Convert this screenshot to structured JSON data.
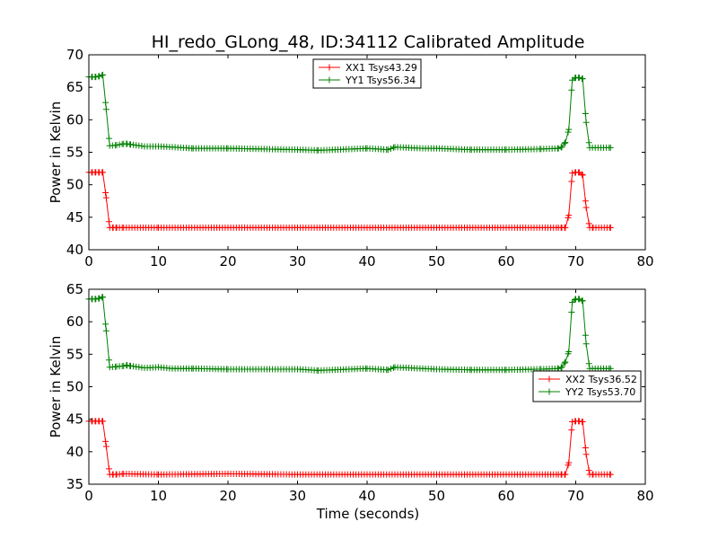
{
  "figure": {
    "title": "HI_redo_GLong_48, ID:34112 Calibrated Amplitude",
    "xlabel": "Time (seconds)"
  },
  "chart_data": [
    {
      "type": "line",
      "title": "HI_redo_GLong_48, ID:34112 Calibrated Amplitude",
      "xlabel": "",
      "ylabel": "Power in Kelvin",
      "xlim": [
        0,
        80
      ],
      "ylim": [
        40,
        70
      ],
      "xticks": [
        0,
        10,
        20,
        30,
        40,
        50,
        60,
        70,
        80
      ],
      "yticks": [
        40,
        45,
        50,
        55,
        60,
        65,
        70
      ],
      "grid": false,
      "legend_position": "top-center",
      "marker": "+",
      "series": [
        {
          "name": "XX1 Tsys43.29",
          "color": "#ff0000",
          "x": [
            0,
            0.5,
            1,
            1.5,
            2,
            2.5,
            3,
            3.5,
            4,
            5,
            10,
            20,
            30,
            40,
            50,
            60,
            67.5,
            68,
            68.5,
            69,
            69.5,
            70,
            70.5,
            71,
            71.5,
            72,
            72.5,
            75
          ],
          "y": [
            51.9,
            51.9,
            51.9,
            51.9,
            51.9,
            48,
            43.4,
            43.4,
            43.4,
            43.4,
            43.4,
            43.4,
            43.4,
            43.4,
            43.4,
            43.4,
            43.4,
            43.4,
            43.4,
            45.3,
            51.8,
            51.9,
            51.9,
            51.5,
            46.5,
            43.4,
            43.4,
            43.4
          ]
        },
        {
          "name": "YY1 Tsys56.34",
          "color": "#008000",
          "x": [
            0,
            0.5,
            1,
            1.5,
            2,
            2.5,
            3,
            4,
            5,
            5.5,
            6,
            8,
            10,
            12,
            15,
            20,
            30,
            33,
            40,
            43,
            44,
            48,
            50,
            55,
            60,
            65,
            67.5,
            68,
            68.5,
            69,
            69.5,
            70,
            70.5,
            71,
            71.5,
            72,
            75
          ],
          "y": [
            66.6,
            66.6,
            66.6,
            66.7,
            66.9,
            61.6,
            56.0,
            56.1,
            56.3,
            56.3,
            56.2,
            55.9,
            55.9,
            55.8,
            55.6,
            55.6,
            55.4,
            55.3,
            55.6,
            55.4,
            55.8,
            55.6,
            55.6,
            55.4,
            55.4,
            55.5,
            55.6,
            55.8,
            56.5,
            58.5,
            66.1,
            66.5,
            66.5,
            66.3,
            59.6,
            55.7,
            55.7
          ]
        }
      ]
    },
    {
      "type": "line",
      "title": "",
      "xlabel": "Time (seconds)",
      "ylabel": "Power in Kelvin",
      "xlim": [
        0,
        80
      ],
      "ylim": [
        35,
        65
      ],
      "xticks": [
        0,
        10,
        20,
        30,
        40,
        50,
        60,
        70,
        80
      ],
      "yticks": [
        35,
        40,
        45,
        50,
        55,
        60,
        65
      ],
      "grid": false,
      "legend_position": "center-right",
      "marker": "+",
      "series": [
        {
          "name": "XX2 Tsys36.52",
          "color": "#ff0000",
          "x": [
            0,
            0.5,
            1,
            1.5,
            2,
            2.5,
            3,
            3.5,
            4,
            5,
            10,
            20,
            30,
            40,
            50,
            60,
            67.5,
            68,
            68.5,
            69,
            69.5,
            70,
            70.5,
            71,
            71.5,
            72,
            72.5,
            75
          ],
          "y": [
            44.7,
            44.7,
            44.7,
            44.7,
            44.7,
            40.8,
            36.5,
            36.5,
            36.5,
            36.6,
            36.5,
            36.6,
            36.5,
            36.5,
            36.5,
            36.5,
            36.5,
            36.5,
            36.5,
            38.3,
            44.6,
            44.7,
            44.7,
            44.6,
            39.6,
            36.5,
            36.5,
            36.5
          ]
        },
        {
          "name": "YY2 Tsys53.70",
          "color": "#008000",
          "x": [
            0,
            0.5,
            1,
            1.5,
            2,
            2.5,
            3,
            4,
            5,
            5.5,
            6,
            8,
            10,
            12,
            15,
            20,
            30,
            33,
            40,
            43,
            44,
            48,
            50,
            55,
            60,
            65,
            67.5,
            68,
            68.5,
            69,
            69.5,
            70,
            70.5,
            71,
            71.5,
            72,
            75
          ],
          "y": [
            63.5,
            63.5,
            63.5,
            63.6,
            63.8,
            58.6,
            53.0,
            53.1,
            53.2,
            53.3,
            53.2,
            52.9,
            53.0,
            52.8,
            52.8,
            52.7,
            52.7,
            52.5,
            52.8,
            52.6,
            53.0,
            52.8,
            52.7,
            52.6,
            52.6,
            52.7,
            52.8,
            53.0,
            53.8,
            55.4,
            63.0,
            63.5,
            63.5,
            63.2,
            56.6,
            52.8,
            52.8
          ]
        }
      ]
    }
  ]
}
